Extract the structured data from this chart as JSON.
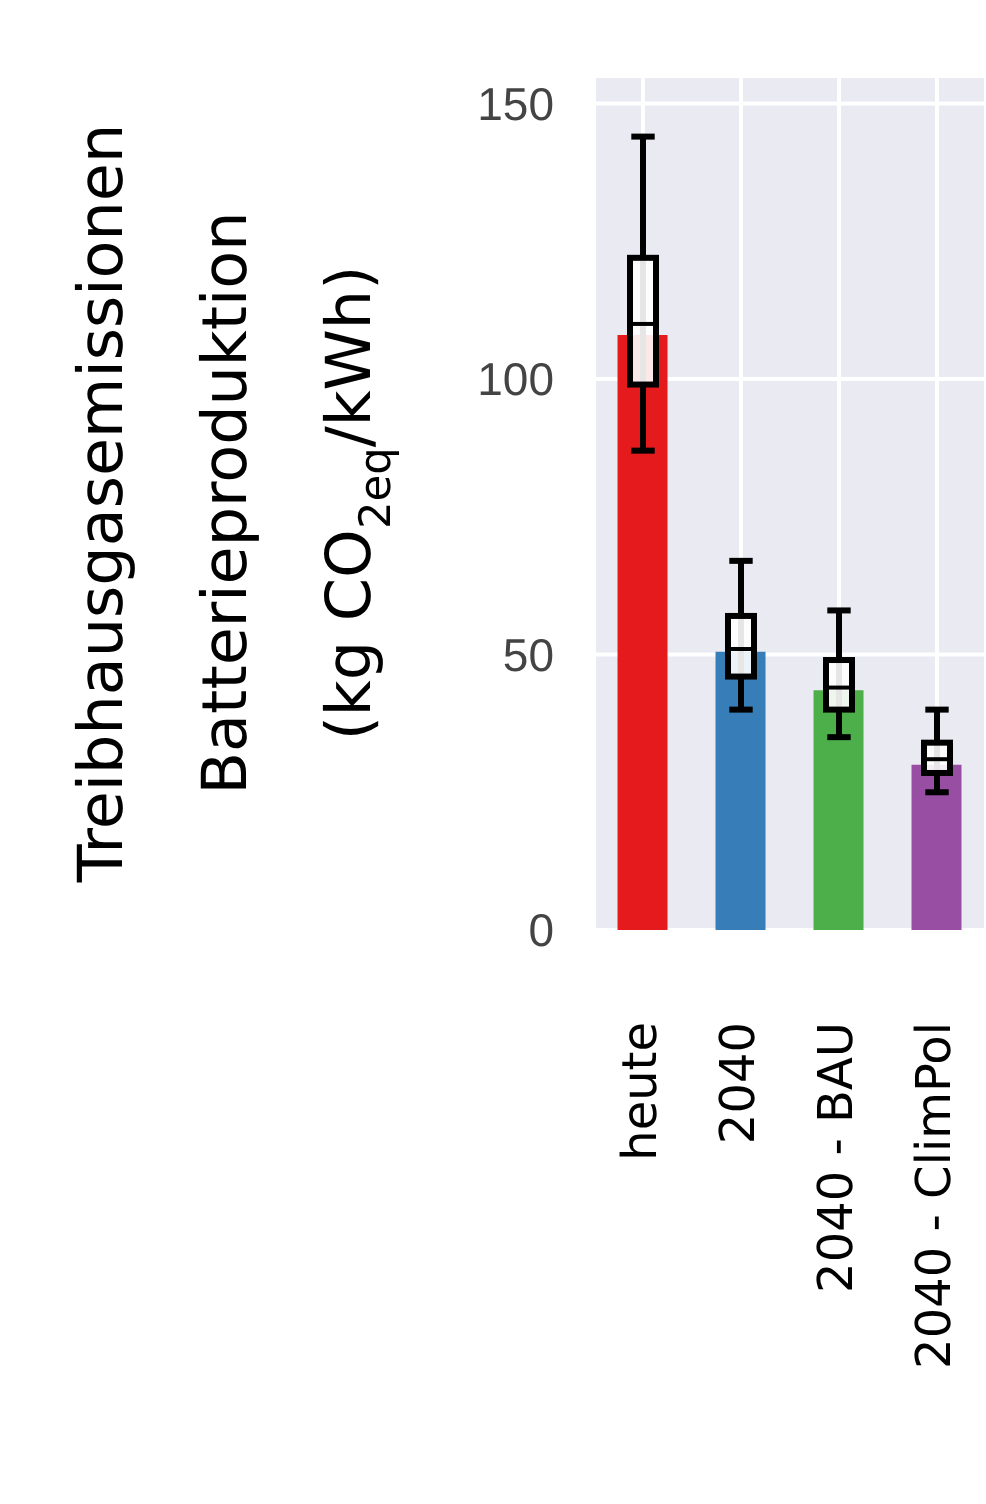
{
  "chart_data": {
    "type": "bar",
    "ylabel": "Treibhausgasemissionen\nBatterieproduktion\n(kg CO$_{2eq}$/kWh)",
    "categories": [
      "heute",
      "2040",
      "2040 - BAU",
      "2040 - ClimPol"
    ],
    "series": [
      {
        "values": [
          108,
          50.5,
          43.5,
          30
        ],
        "colors": [
          "#e41a1c",
          "#377eb8",
          "#4daf4a",
          "#984ea3"
        ]
      },
      {
        "type": "box",
        "color": "#000000",
        "boxes": [
          {
            "low": 87,
            "q1": 99,
            "median": 110,
            "q3": 122,
            "high": 144
          },
          {
            "low": 40,
            "q1": 46,
            "median": 51,
            "q3": 57,
            "high": 67
          },
          {
            "low": 35,
            "q1": 40,
            "median": 44,
            "q3": 49,
            "high": 58
          },
          {
            "low": 25,
            "q1": 28.5,
            "median": 31,
            "q3": 34,
            "high": 40
          }
        ]
      }
    ],
    "ylim": [
      0,
      155
    ],
    "yticks": [
      0,
      50,
      100,
      150
    ],
    "grid": true
  }
}
